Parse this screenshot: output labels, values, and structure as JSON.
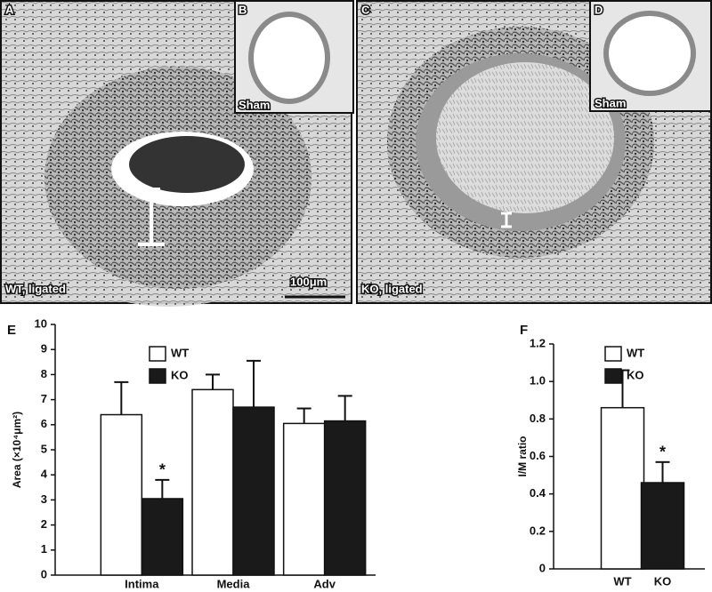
{
  "panels": [
    {
      "label": "A",
      "caption": "WT, ligated",
      "scale_bar": "100μm"
    },
    {
      "label": "B",
      "caption": "Sham"
    },
    {
      "label": "C",
      "caption": "KO, ligated"
    },
    {
      "label": "D",
      "caption": "Sham"
    }
  ],
  "chart_data": [
    {
      "type": "bar",
      "label": "E",
      "ylabel": "Area (×10⁴μm²)",
      "categories": [
        "Intima",
        "Media",
        "Adv"
      ],
      "series": [
        {
          "name": "WT",
          "color": "#ffffff",
          "values": [
            6.4,
            7.4,
            6.05
          ],
          "errors": [
            1.3,
            0.6,
            0.6
          ]
        },
        {
          "name": "KO",
          "color": "#1a1a1a",
          "values": [
            3.05,
            6.7,
            6.15
          ],
          "errors": [
            0.75,
            1.85,
            1.0
          ]
        }
      ],
      "ylim": [
        0,
        10
      ],
      "yticks": [
        0,
        1,
        2,
        3,
        4,
        5,
        6,
        7,
        8,
        9,
        10
      ],
      "annotations": [
        {
          "text": "*",
          "category": "Intima",
          "series": "KO"
        }
      ]
    },
    {
      "type": "bar",
      "label": "F",
      "ylabel": "I/M ratio",
      "categories": [
        "WT",
        "KO"
      ],
      "series": [
        {
          "name": "WT",
          "color": "#ffffff",
          "values": [
            0.86,
            null
          ],
          "errors": [
            0.2,
            null
          ]
        },
        {
          "name": "KO",
          "color": "#1a1a1a",
          "values": [
            null,
            0.46
          ],
          "errors": [
            null,
            0.11
          ]
        }
      ],
      "ylim": [
        0,
        1.2
      ],
      "yticks": [
        0,
        0.2,
        0.4,
        0.6,
        0.8,
        {
          "value": 1,
          "label": "1.0"
        },
        1.2
      ],
      "annotations": [
        {
          "text": "*",
          "category": "KO",
          "series": "KO"
        }
      ]
    }
  ]
}
